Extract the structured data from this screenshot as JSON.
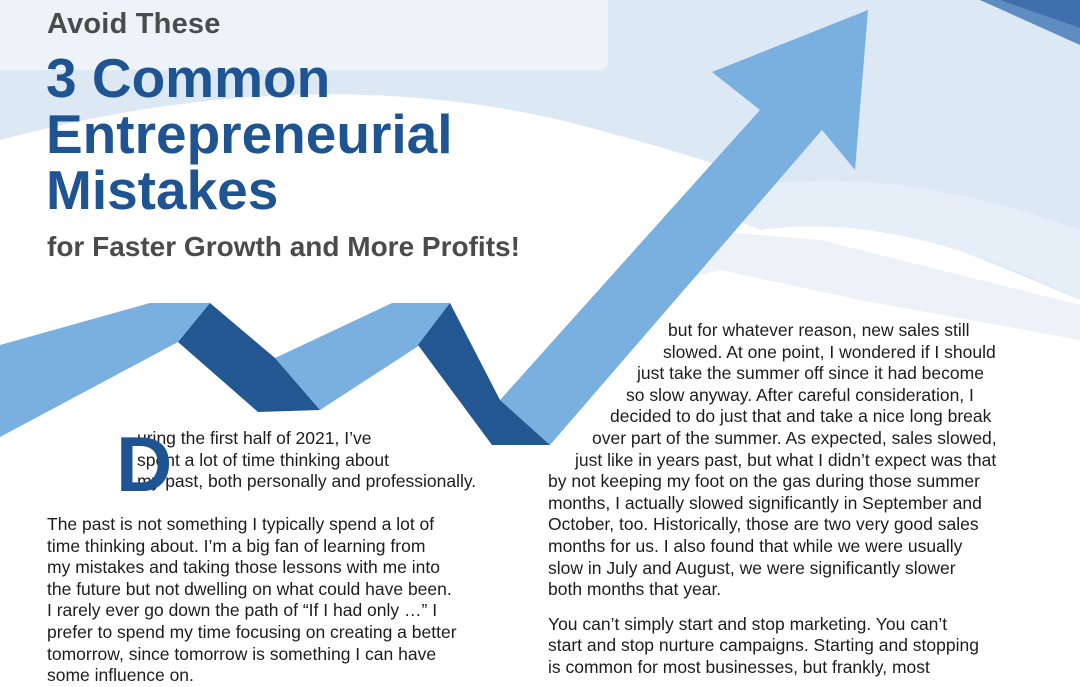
{
  "article": {
    "kicker": "Avoid These",
    "title_lines": [
      "3 Common",
      "Entrepreneurial",
      "Mistakes"
    ],
    "subtitle": "for Faster Growth and More Profits!",
    "dropcap": "D",
    "intro_lines": [
      "uring the first half of 2021, I’ve",
      "spent a lot of time thinking about",
      "my past, both personally and professionally."
    ],
    "left_paragraph_lines": [
      "The past is not something I typically spend a lot of",
      "time thinking about. I’m a big fan of learning from",
      "my mistakes and taking those lessons with me into",
      "the future but not dwelling on what could have been.",
      "I rarely ever go down the path of “If I had only …” I",
      "prefer to spend my time focusing on creating a better",
      "tomorrow, since tomorrow is something I can have",
      "some influence on."
    ],
    "right_paragraph_1_lines": [
      "but for whatever reason, new sales still",
      "slowed. At one point, I wondered if I should",
      "just take the summer off since it had become",
      "so slow anyway. After careful consideration, I",
      "decided to do just that and take a nice long break",
      "over part of the summer. As expected, sales slowed,",
      "just like in years past, but what I didn’t expect was that",
      "by not keeping my foot on the gas during those summer",
      "months, I actually slowed significantly in September and",
      "October, too. Historically, those are two very good sales",
      "months for us. I also found that while we were usually",
      "slow in July and August, we were significantly slower",
      "both months that year."
    ],
    "right_paragraph_2_lines": [
      "You can’t simply start and stop marketing. You can’t",
      "start and stop nurture campaigns. Starting and stopping",
      "is common for most businesses, but frankly, most"
    ]
  },
  "colors": {
    "title_blue": "#1f5492",
    "arrow_light": "#7ab0e0",
    "arrow_dark": "#235792",
    "heading_gray": "#4b4b4b"
  }
}
